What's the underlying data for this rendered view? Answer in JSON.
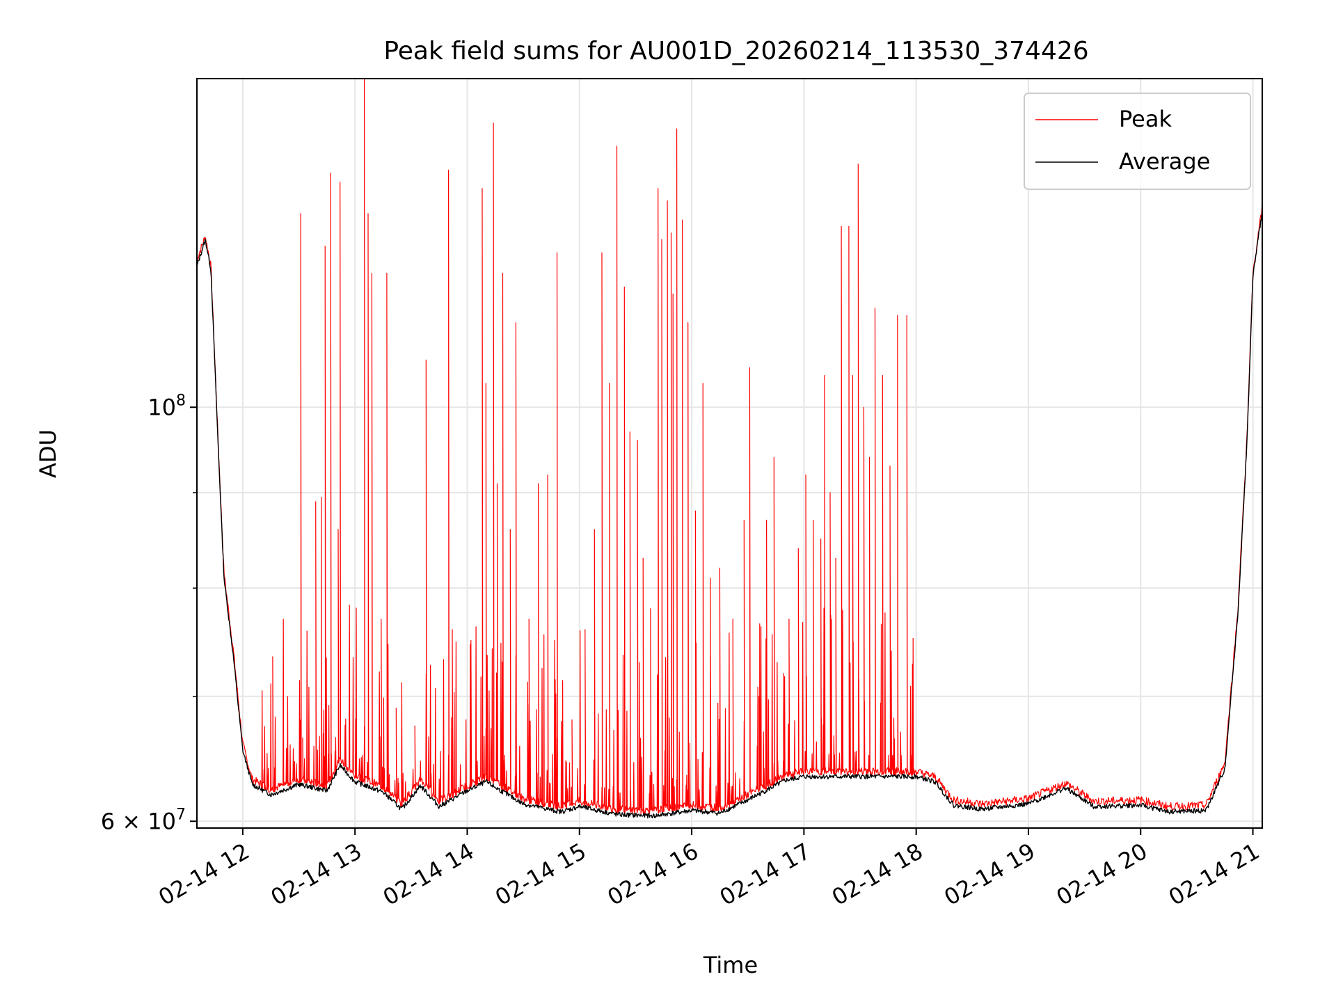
{
  "chart_data": {
    "type": "line",
    "title": "Peak field sums for AU001D_20260214_113530_374426",
    "xlabel": "Time",
    "ylabel": "ADU",
    "x_range": [
      "2026-02-14 11:35:30",
      "2026-02-14 21:05:00"
    ],
    "ylim": [
      59500000,
      150000000
    ],
    "yscale": "log",
    "grid": true,
    "legend_position": "top-right",
    "x_ticks": [
      {
        "value": "2026-02-14 12:00",
        "label": "02-14 12"
      },
      {
        "value": "2026-02-14 13:00",
        "label": "02-14 13"
      },
      {
        "value": "2026-02-14 14:00",
        "label": "02-14 14"
      },
      {
        "value": "2026-02-14 15:00",
        "label": "02-14 15"
      },
      {
        "value": "2026-02-14 16:00",
        "label": "02-14 16"
      },
      {
        "value": "2026-02-14 17:00",
        "label": "02-14 17"
      },
      {
        "value": "2026-02-14 18:00",
        "label": "02-14 18"
      },
      {
        "value": "2026-02-14 19:00",
        "label": "02-14 19"
      },
      {
        "value": "2026-02-14 20:00",
        "label": "02-14 20"
      },
      {
        "value": "2026-02-14 21:00",
        "label": "02-14 21"
      }
    ],
    "y_ticks": [
      {
        "value": 60000000,
        "mantissa": "6",
        "times": "×",
        "base": "10",
        "exponent": "7"
      },
      {
        "value": 100000000,
        "mantissa": "",
        "times": "",
        "base": "10",
        "exponent": "8"
      }
    ],
    "y_minor_ticks": [
      70000000,
      80000000,
      90000000
    ],
    "series": [
      {
        "name": "Peak",
        "color": "#ff0000",
        "points": [
          [
            "2026-02-14 11:35:30",
            120000000
          ],
          [
            "2026-02-14 11:40",
            123500000
          ],
          [
            "2026-02-14 11:43",
            119000000
          ],
          [
            "2026-02-14 11:47",
            95000000
          ],
          [
            "2026-02-14 11:50",
            81500000
          ],
          [
            "2026-02-14 11:55",
            74000000
          ],
          [
            "2026-02-14 12:00",
            66000000
          ],
          [
            "2026-02-14 12:05",
            63200000
          ],
          [
            "2026-02-14 12:15",
            62400000
          ],
          [
            "2026-02-14 12:30",
            63200000
          ],
          [
            "2026-02-14 12:45",
            62700000
          ],
          [
            "2026-02-14 12:52",
            64800000
          ],
          [
            "2026-02-14 13:00",
            63500000
          ],
          [
            "2026-02-14 13:15",
            62600000
          ],
          [
            "2026-02-14 13:25",
            61300000
          ],
          [
            "2026-02-14 13:35",
            63200000
          ],
          [
            "2026-02-14 13:45",
            61500000
          ],
          [
            "2026-02-14 14:00",
            62700000
          ],
          [
            "2026-02-14 14:10",
            63400000
          ],
          [
            "2026-02-14 14:30",
            61700000
          ],
          [
            "2026-02-14 14:50",
            61100000
          ],
          [
            "2026-02-14 15:00",
            61500000
          ],
          [
            "2026-02-14 15:20",
            60900000
          ],
          [
            "2026-02-14 15:40",
            60800000
          ],
          [
            "2026-02-14 16:00",
            61200000
          ],
          [
            "2026-02-14 16:15",
            61000000
          ],
          [
            "2026-02-14 16:30",
            62000000
          ],
          [
            "2026-02-14 16:50",
            63500000
          ],
          [
            "2026-02-14 17:00",
            63800000
          ],
          [
            "2026-02-14 17:30",
            63800000
          ],
          [
            "2026-02-14 18:00",
            63800000
          ],
          [
            "2026-02-14 18:10",
            63400000
          ],
          [
            "2026-02-14 18:20",
            61600000
          ],
          [
            "2026-02-14 18:35",
            61300000
          ],
          [
            "2026-02-14 19:00",
            61700000
          ],
          [
            "2026-02-14 19:20",
            62900000
          ],
          [
            "2026-02-14 19:35",
            61500000
          ],
          [
            "2026-02-14 20:00",
            61600000
          ],
          [
            "2026-02-14 20:15",
            61100000
          ],
          [
            "2026-02-14 20:35",
            61200000
          ],
          [
            "2026-02-14 20:45",
            64500000
          ],
          [
            "2026-02-14 20:52",
            78000000
          ],
          [
            "2026-02-14 20:57",
            97000000
          ],
          [
            "2026-02-14 21:00",
            118000000
          ],
          [
            "2026-02-14 21:05",
            128000000
          ]
        ],
        "spikes": [
          [
            "2026-02-14 12:16",
            73500000
          ],
          [
            "2026-02-14 12:31",
            127000000
          ],
          [
            "2026-02-14 12:32",
            66500000
          ],
          [
            "2026-02-14 12:39",
            89000000
          ],
          [
            "2026-02-14 12:42",
            89500000
          ],
          [
            "2026-02-14 12:44",
            122000000
          ],
          [
            "2026-02-14 12:47",
            133500000
          ],
          [
            "2026-02-14 12:51",
            86000000
          ],
          [
            "2026-02-14 12:52",
            132000000
          ],
          [
            "2026-02-14 13:05",
            150000000
          ],
          [
            "2026-02-14 13:07",
            127000000
          ],
          [
            "2026-02-14 13:09",
            118000000
          ],
          [
            "2026-02-14 13:14",
            77000000
          ],
          [
            "2026-02-14 13:17",
            118000000
          ],
          [
            "2026-02-14 13:22",
            69000000
          ],
          [
            "2026-02-14 13:32",
            67500000
          ],
          [
            "2026-02-14 13:38",
            106000000
          ],
          [
            "2026-02-14 13:50",
            134000000
          ],
          [
            "2026-02-14 13:52",
            76000000
          ],
          [
            "2026-02-14 14:02",
            75000000
          ],
          [
            "2026-02-14 14:08",
            131000000
          ],
          [
            "2026-02-14 14:10",
            103000000
          ],
          [
            "2026-02-14 14:14",
            142000000
          ],
          [
            "2026-02-14 14:16",
            91000000
          ],
          [
            "2026-02-14 14:19",
            118000000
          ],
          [
            "2026-02-14 14:23",
            86000000
          ],
          [
            "2026-02-14 14:26",
            111000000
          ],
          [
            "2026-02-14 14:33",
            77000000
          ],
          [
            "2026-02-14 14:38",
            91000000
          ],
          [
            "2026-02-14 14:43",
            92000000
          ],
          [
            "2026-02-14 14:48",
            121000000
          ],
          [
            "2026-02-14 14:56",
            68000000
          ],
          [
            "2026-02-14 15:03",
            76000000
          ],
          [
            "2026-02-14 15:08",
            86000000
          ],
          [
            "2026-02-14 15:12",
            121000000
          ],
          [
            "2026-02-14 15:16",
            103000000
          ],
          [
            "2026-02-14 15:20",
            138000000
          ],
          [
            "2026-02-14 15:24",
            116000000
          ],
          [
            "2026-02-14 15:27",
            97000000
          ],
          [
            "2026-02-14 15:31",
            96000000
          ],
          [
            "2026-02-14 15:34",
            83000000
          ],
          [
            "2026-02-14 15:38",
            78000000
          ],
          [
            "2026-02-14 15:42",
            131000000
          ],
          [
            "2026-02-14 15:44",
            123000000
          ],
          [
            "2026-02-14 15:47",
            129000000
          ],
          [
            "2026-02-14 15:49",
            124000000
          ],
          [
            "2026-02-14 15:50",
            115000000
          ],
          [
            "2026-02-14 15:52",
            141000000
          ],
          [
            "2026-02-14 15:55",
            126000000
          ],
          [
            "2026-02-14 15:58",
            111000000
          ],
          [
            "2026-02-14 16:02",
            88000000
          ],
          [
            "2026-02-14 16:06",
            103000000
          ],
          [
            "2026-02-14 16:10",
            81000000
          ],
          [
            "2026-02-14 16:15",
            82000000
          ],
          [
            "2026-02-14 16:22",
            77000000
          ],
          [
            "2026-02-14 16:28",
            87000000
          ],
          [
            "2026-02-14 16:31",
            105000000
          ],
          [
            "2026-02-14 16:36",
            70000000
          ],
          [
            "2026-02-14 16:40",
            87000000
          ],
          [
            "2026-02-14 16:44",
            94000000
          ],
          [
            "2026-02-14 16:49",
            72000000
          ],
          [
            "2026-02-14 16:52",
            77000000
          ],
          [
            "2026-02-14 16:57",
            84000000
          ],
          [
            "2026-02-14 17:01",
            92000000
          ],
          [
            "2026-02-14 17:05",
            87000000
          ],
          [
            "2026-02-14 17:09",
            85000000
          ],
          [
            "2026-02-14 17:11",
            104000000
          ],
          [
            "2026-02-14 17:14",
            90000000
          ],
          [
            "2026-02-14 17:17",
            83000000
          ],
          [
            "2026-02-14 17:20",
            125000000
          ],
          [
            "2026-02-14 17:24",
            125000000
          ],
          [
            "2026-02-14 17:26",
            104000000
          ],
          [
            "2026-02-14 17:29",
            135000000
          ],
          [
            "2026-02-14 17:32",
            100000000
          ],
          [
            "2026-02-14 17:35",
            94000000
          ],
          [
            "2026-02-14 17:38",
            113000000
          ],
          [
            "2026-02-14 17:42",
            104000000
          ],
          [
            "2026-02-14 17:46",
            93000000
          ],
          [
            "2026-02-14 17:50",
            112000000
          ],
          [
            "2026-02-14 17:55",
            112000000
          ],
          [
            "2026-02-14 17:58",
            71000000
          ]
        ]
      },
      {
        "name": "Average",
        "color": "#000000",
        "points": [
          [
            "2026-02-14 11:35:30",
            119000000
          ],
          [
            "2026-02-14 11:40",
            123000000
          ],
          [
            "2026-02-14 11:43",
            118500000
          ],
          [
            "2026-02-14 11:47",
            94500000
          ],
          [
            "2026-02-14 11:50",
            81000000
          ],
          [
            "2026-02-14 11:55",
            73500000
          ],
          [
            "2026-02-14 12:00",
            65500000
          ],
          [
            "2026-02-14 12:05",
            62800000
          ],
          [
            "2026-02-14 12:15",
            62000000
          ],
          [
            "2026-02-14 12:30",
            62800000
          ],
          [
            "2026-02-14 12:45",
            62300000
          ],
          [
            "2026-02-14 12:52",
            64300000
          ],
          [
            "2026-02-14 13:00",
            63000000
          ],
          [
            "2026-02-14 13:15",
            62200000
          ],
          [
            "2026-02-14 13:25",
            60900000
          ],
          [
            "2026-02-14 13:35",
            62700000
          ],
          [
            "2026-02-14 13:45",
            61100000
          ],
          [
            "2026-02-14 14:00",
            62300000
          ],
          [
            "2026-02-14 14:10",
            63000000
          ],
          [
            "2026-02-14 14:30",
            61300000
          ],
          [
            "2026-02-14 14:50",
            60700000
          ],
          [
            "2026-02-14 15:00",
            61100000
          ],
          [
            "2026-02-14 15:20",
            60500000
          ],
          [
            "2026-02-14 15:40",
            60400000
          ],
          [
            "2026-02-14 16:00",
            60800000
          ],
          [
            "2026-02-14 16:15",
            60600000
          ],
          [
            "2026-02-14 16:30",
            61600000
          ],
          [
            "2026-02-14 16:50",
            63100000
          ],
          [
            "2026-02-14 17:00",
            63400000
          ],
          [
            "2026-02-14 17:30",
            63400000
          ],
          [
            "2026-02-14 18:00",
            63400000
          ],
          [
            "2026-02-14 18:10",
            63000000
          ],
          [
            "2026-02-14 18:20",
            61200000
          ],
          [
            "2026-02-14 18:35",
            60900000
          ],
          [
            "2026-02-14 19:00",
            61300000
          ],
          [
            "2026-02-14 19:20",
            62500000
          ],
          [
            "2026-02-14 19:35",
            61100000
          ],
          [
            "2026-02-14 20:00",
            61200000
          ],
          [
            "2026-02-14 20:15",
            60700000
          ],
          [
            "2026-02-14 20:35",
            60800000
          ],
          [
            "2026-02-14 20:45",
            64000000
          ],
          [
            "2026-02-14 20:52",
            77500000
          ],
          [
            "2026-02-14 20:57",
            96500000
          ],
          [
            "2026-02-14 21:00",
            117500000
          ],
          [
            "2026-02-14 21:05",
            127500000
          ]
        ]
      }
    ]
  }
}
